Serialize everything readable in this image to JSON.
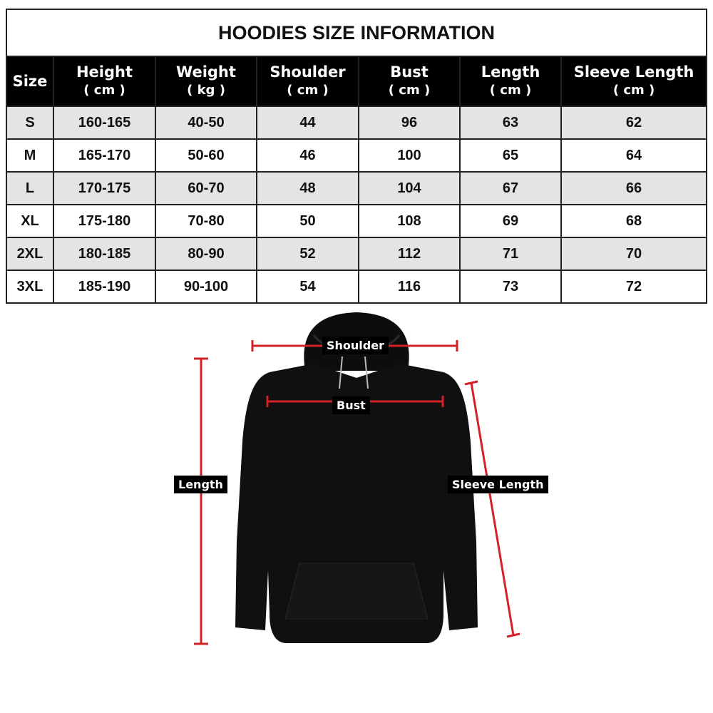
{
  "title": "HOODIES SIZE INFORMATION",
  "headers": [
    {
      "label": "Size",
      "unit": ""
    },
    {
      "label": "Height",
      "unit": "( cm )"
    },
    {
      "label": "Weight",
      "unit": "( kg )"
    },
    {
      "label": "Shoulder",
      "unit": "( cm )"
    },
    {
      "label": "Bust",
      "unit": "( cm )"
    },
    {
      "label": "Length",
      "unit": "( cm )"
    },
    {
      "label": "Sleeve Length",
      "unit": "( cm )"
    }
  ],
  "rows": [
    [
      "S",
      "160-165",
      "40-50",
      "44",
      "96",
      "63",
      "62"
    ],
    [
      "M",
      "165-170",
      "50-60",
      "46",
      "100",
      "65",
      "64"
    ],
    [
      "L",
      "170-175",
      "60-70",
      "48",
      "104",
      "67",
      "66"
    ],
    [
      "XL",
      "175-180",
      "70-80",
      "50",
      "108",
      "69",
      "68"
    ],
    [
      "2XL",
      "180-185",
      "80-90",
      "52",
      "112",
      "71",
      "70"
    ],
    [
      "3XL",
      "185-190",
      "90-100",
      "54",
      "116",
      "73",
      "72"
    ]
  ],
  "diagram": {
    "shoulder": "Shoulder",
    "bust": "Bust",
    "length": "Length",
    "sleeve": "Sleeve Length",
    "measure_color": "#d42027"
  }
}
